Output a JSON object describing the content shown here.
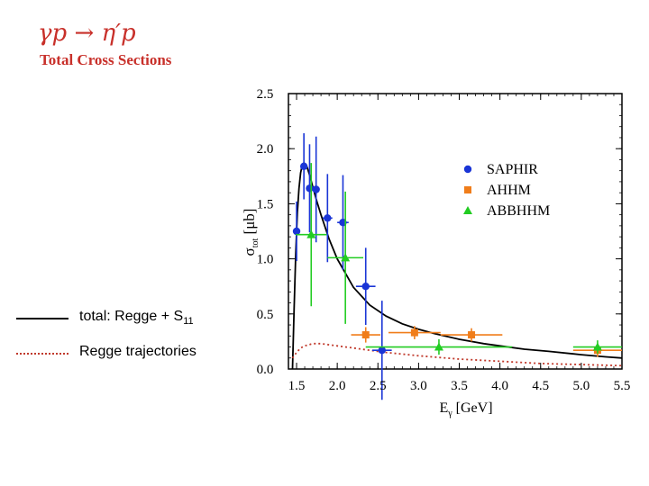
{
  "title": {
    "reaction": "γp → η′p",
    "subtitle": "Total Cross Sections"
  },
  "left_legend": {
    "entries": [
      {
        "label": "total: Regge + S",
        "sub": "11",
        "style": "solid",
        "color": "#000000"
      },
      {
        "label": "Regge trajectories",
        "sub": "",
        "style": "dotted",
        "color": "#c0392b"
      }
    ]
  },
  "chart_data": {
    "type": "scatter",
    "title": "",
    "xlabel": "E",
    "xlabel_sub": "γ",
    "xlabel_units": "[GeV]",
    "ylabel": "σ",
    "ylabel_sub": "tot",
    "ylabel_units": "[μb]",
    "xlim": [
      1.4,
      5.5
    ],
    "ylim": [
      0.0,
      2.5
    ],
    "xticks": [
      "1.5",
      "2.0",
      "2.5",
      "3.0",
      "3.5",
      "4.0",
      "4.5",
      "5.0",
      "5.5"
    ],
    "xtick_values": [
      1.5,
      2.0,
      2.5,
      3.0,
      3.5,
      4.0,
      4.5,
      5.0,
      5.5
    ],
    "yticks": [
      "0.0",
      "0.5",
      "1.0",
      "1.5",
      "2.0",
      "2.5"
    ],
    "ytick_values": [
      0.0,
      0.5,
      1.0,
      1.5,
      2.0,
      2.5
    ],
    "legend_position": "top-right",
    "series": [
      {
        "name": "SAPHIR",
        "marker": "circle",
        "color": "#1a35d6",
        "points": [
          {
            "x": 1.5,
            "y": 1.25,
            "yerr": 0.27,
            "xerr": 0.03
          },
          {
            "x": 1.59,
            "y": 1.84,
            "yerr": 0.3,
            "xerr": 0.04
          },
          {
            "x": 1.66,
            "y": 1.64,
            "yerr": 0.4,
            "xerr": 0.04
          },
          {
            "x": 1.74,
            "y": 1.63,
            "yerr": 0.48,
            "xerr": 0.04
          },
          {
            "x": 1.88,
            "y": 1.37,
            "yerr": 0.4,
            "xerr": 0.06
          },
          {
            "x": 2.07,
            "y": 1.33,
            "yerr": 0.43,
            "xerr": 0.07
          },
          {
            "x": 2.35,
            "y": 0.75,
            "yerr": 0.35,
            "xerr": 0.12
          },
          {
            "x": 2.55,
            "y": 0.17,
            "yerr": 0.45,
            "xerr": 0.12
          }
        ]
      },
      {
        "name": "AHHM",
        "marker": "square",
        "color": "#f07d1a",
        "points": [
          {
            "x": 2.35,
            "y": 0.31,
            "yerr": 0.07,
            "xerr": 0.18
          },
          {
            "x": 2.95,
            "y": 0.33,
            "yerr": 0.06,
            "xerr": 0.32
          },
          {
            "x": 3.65,
            "y": 0.31,
            "yerr": 0.06,
            "xerr": 0.38
          },
          {
            "x": 5.2,
            "y": 0.17,
            "yerr": 0.06,
            "xerr": 0.3
          }
        ]
      },
      {
        "name": "ABBHHM",
        "marker": "triangle",
        "color": "#22cc22",
        "points": [
          {
            "x": 1.68,
            "y": 1.22,
            "yerr": 0.65,
            "xerr": 0.19
          },
          {
            "x": 2.1,
            "y": 1.01,
            "yerr": 0.6,
            "xerr": 0.22
          },
          {
            "x": 3.25,
            "y": 0.2,
            "yerr": 0.07,
            "xerr": 0.9
          },
          {
            "x": 5.2,
            "y": 0.2,
            "yerr": 0.06,
            "xerr": 0.3
          }
        ]
      }
    ],
    "curves": [
      {
        "name": "total: Regge + S11",
        "style": "solid",
        "color": "#000000",
        "x": [
          1.45,
          1.47,
          1.49,
          1.51,
          1.53,
          1.55,
          1.57,
          1.59,
          1.61,
          1.63,
          1.66,
          1.7,
          1.75,
          1.8,
          1.9,
          2.0,
          2.2,
          2.4,
          2.6,
          2.8,
          3.0,
          3.2,
          3.5,
          3.8,
          4.0,
          4.3,
          4.6,
          5.0,
          5.3,
          5.5
        ],
        "y": [
          0.0,
          0.55,
          1.05,
          1.42,
          1.64,
          1.78,
          1.85,
          1.87,
          1.86,
          1.83,
          1.76,
          1.65,
          1.52,
          1.4,
          1.18,
          1.0,
          0.74,
          0.58,
          0.48,
          0.41,
          0.36,
          0.32,
          0.27,
          0.23,
          0.21,
          0.18,
          0.16,
          0.13,
          0.11,
          0.1
        ]
      },
      {
        "name": "Regge trajectories",
        "style": "dotted",
        "color": "#c0392b",
        "x": [
          1.45,
          1.5,
          1.55,
          1.6,
          1.7,
          1.8,
          1.9,
          2.0,
          2.2,
          2.4,
          2.6,
          3.0,
          3.5,
          4.0,
          4.5,
          5.0,
          5.5
        ],
        "y": [
          0.1,
          0.15,
          0.19,
          0.21,
          0.23,
          0.23,
          0.22,
          0.21,
          0.19,
          0.17,
          0.15,
          0.12,
          0.09,
          0.07,
          0.05,
          0.04,
          0.03
        ]
      }
    ]
  }
}
